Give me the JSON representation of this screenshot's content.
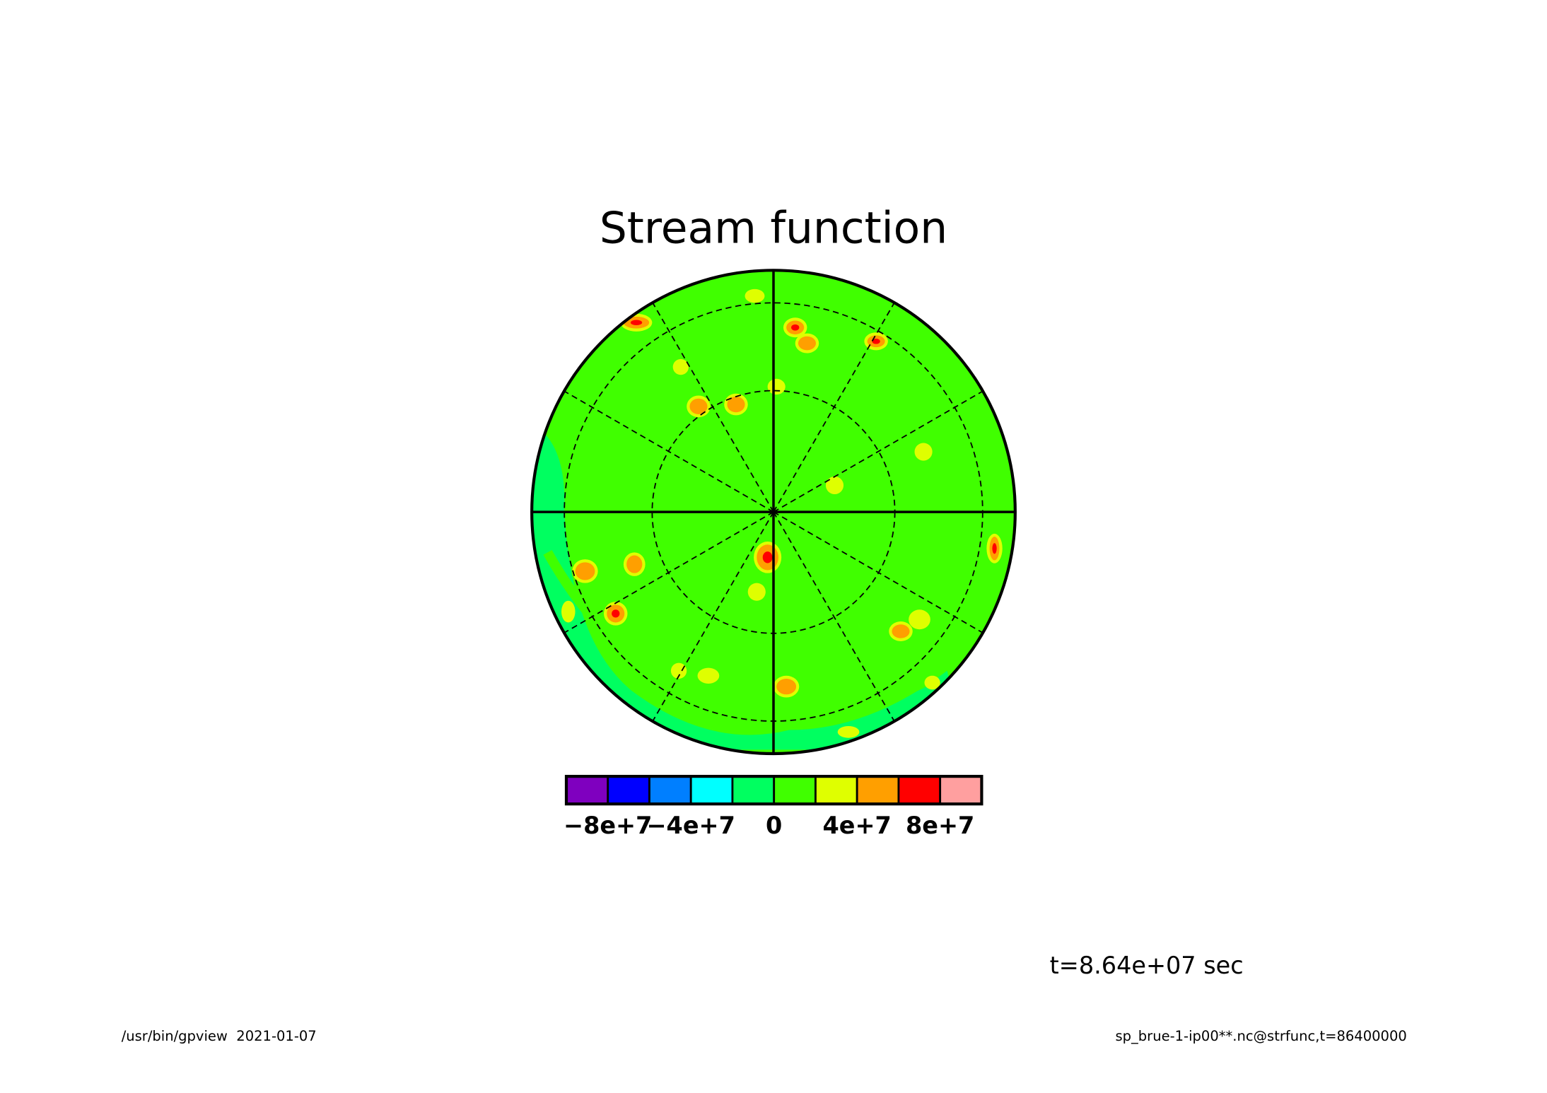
{
  "chart_data": {
    "type": "contour",
    "title": "Stream function",
    "projection": "polar",
    "clim": [
      -100000000,
      100000000
    ],
    "colors": [
      "#7f00bf",
      "#0000ff",
      "#007fff",
      "#00ffff",
      "#00ff60",
      "#40ff00",
      "#dfff00",
      "#ff9f00",
      "#ff0000",
      "#ff9f9f"
    ],
    "ticks": [
      {
        "value": -80000000,
        "label": "−8e+7"
      },
      {
        "value": -40000000,
        "label": "−4e+7"
      },
      0,
      {
        "value": 40000000,
        "label": "4e+7"
      },
      {
        "value": 80000000,
        "label": "8e+7"
      }
    ],
    "annotation": "t=8.64e+07 sec"
  },
  "footer": {
    "left": "/usr/bin/gpview  2021-01-07",
    "right": "sp_brue-1-ip00**.nc@strfunc,t=86400000"
  }
}
